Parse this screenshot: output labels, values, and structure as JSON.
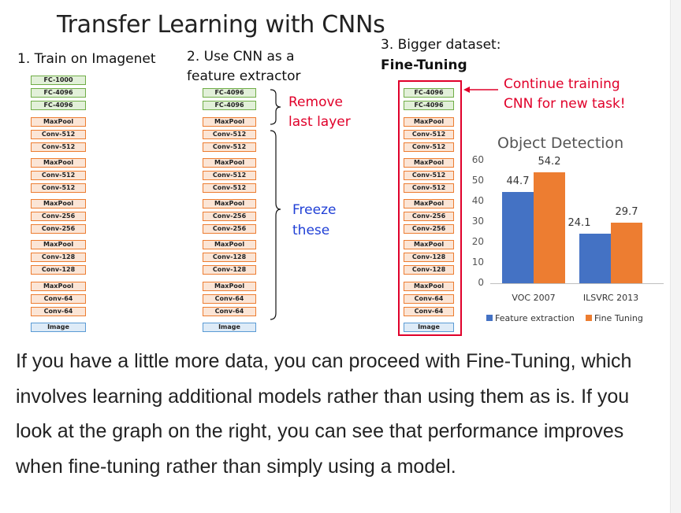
{
  "slide": {
    "title": "Transfer Learning with CNNs",
    "col1_heading": "1. Train on Imagenet",
    "col2_heading_line1": "2. Use CNN as a",
    "col2_heading_line2": "feature extractor",
    "col3_heading_line1": "3. Bigger dataset:",
    "col3_heading_line2": "Fine-Tuning",
    "network_full": [
      "FC-1000",
      "FC-4096",
      "FC-4096",
      "MaxPool",
      "Conv-512",
      "Conv-512",
      "MaxPool",
      "Conv-512",
      "Conv-512",
      "MaxPool",
      "Conv-256",
      "Conv-256",
      "MaxPool",
      "Conv-128",
      "Conv-128",
      "MaxPool",
      "Conv-64",
      "Conv-64",
      "Image"
    ],
    "network_trimmed": [
      "FC-4096",
      "FC-4096",
      "MaxPool",
      "Conv-512",
      "Conv-512",
      "MaxPool",
      "Conv-512",
      "Conv-512",
      "MaxPool",
      "Conv-256",
      "Conv-256",
      "MaxPool",
      "Conv-128",
      "Conv-128",
      "MaxPool",
      "Conv-64",
      "Conv-64",
      "Image"
    ],
    "remove_line1": "Remove",
    "remove_line2": "last layer",
    "freeze_line1": "Freeze",
    "freeze_line2": "these",
    "continue_line1": "Continue training",
    "continue_line2": "CNN for new task!",
    "colors": {
      "fc": "#e2f0d9",
      "conv": "#fbe5d6",
      "image": "#deebf7",
      "annotation_red": "#e0002a",
      "annotation_blue": "#1f3fd6"
    }
  },
  "chart_data": {
    "type": "bar",
    "title": "Object Detection",
    "categories": [
      "VOC 2007",
      "ILSVRC 2013"
    ],
    "series": [
      {
        "name": "Feature extraction",
        "values": [
          44.7,
          24.1
        ],
        "color": "#4472c4"
      },
      {
        "name": "Fine Tuning",
        "values": [
          54.2,
          29.7
        ],
        "color": "#ed7d31"
      }
    ],
    "yticks": [
      "0",
      "10",
      "20",
      "30",
      "40",
      "50",
      "60"
    ],
    "ylim": [
      0,
      60
    ],
    "grid": false,
    "legend": "bottom"
  },
  "paragraph": "If you have a little more data, you can proceed with Fine-Tuning, which involves learning additional models rather than using them as is. If you look at the graph on the right, you can see that performance improves when fine-tuning rather than simply using a model."
}
